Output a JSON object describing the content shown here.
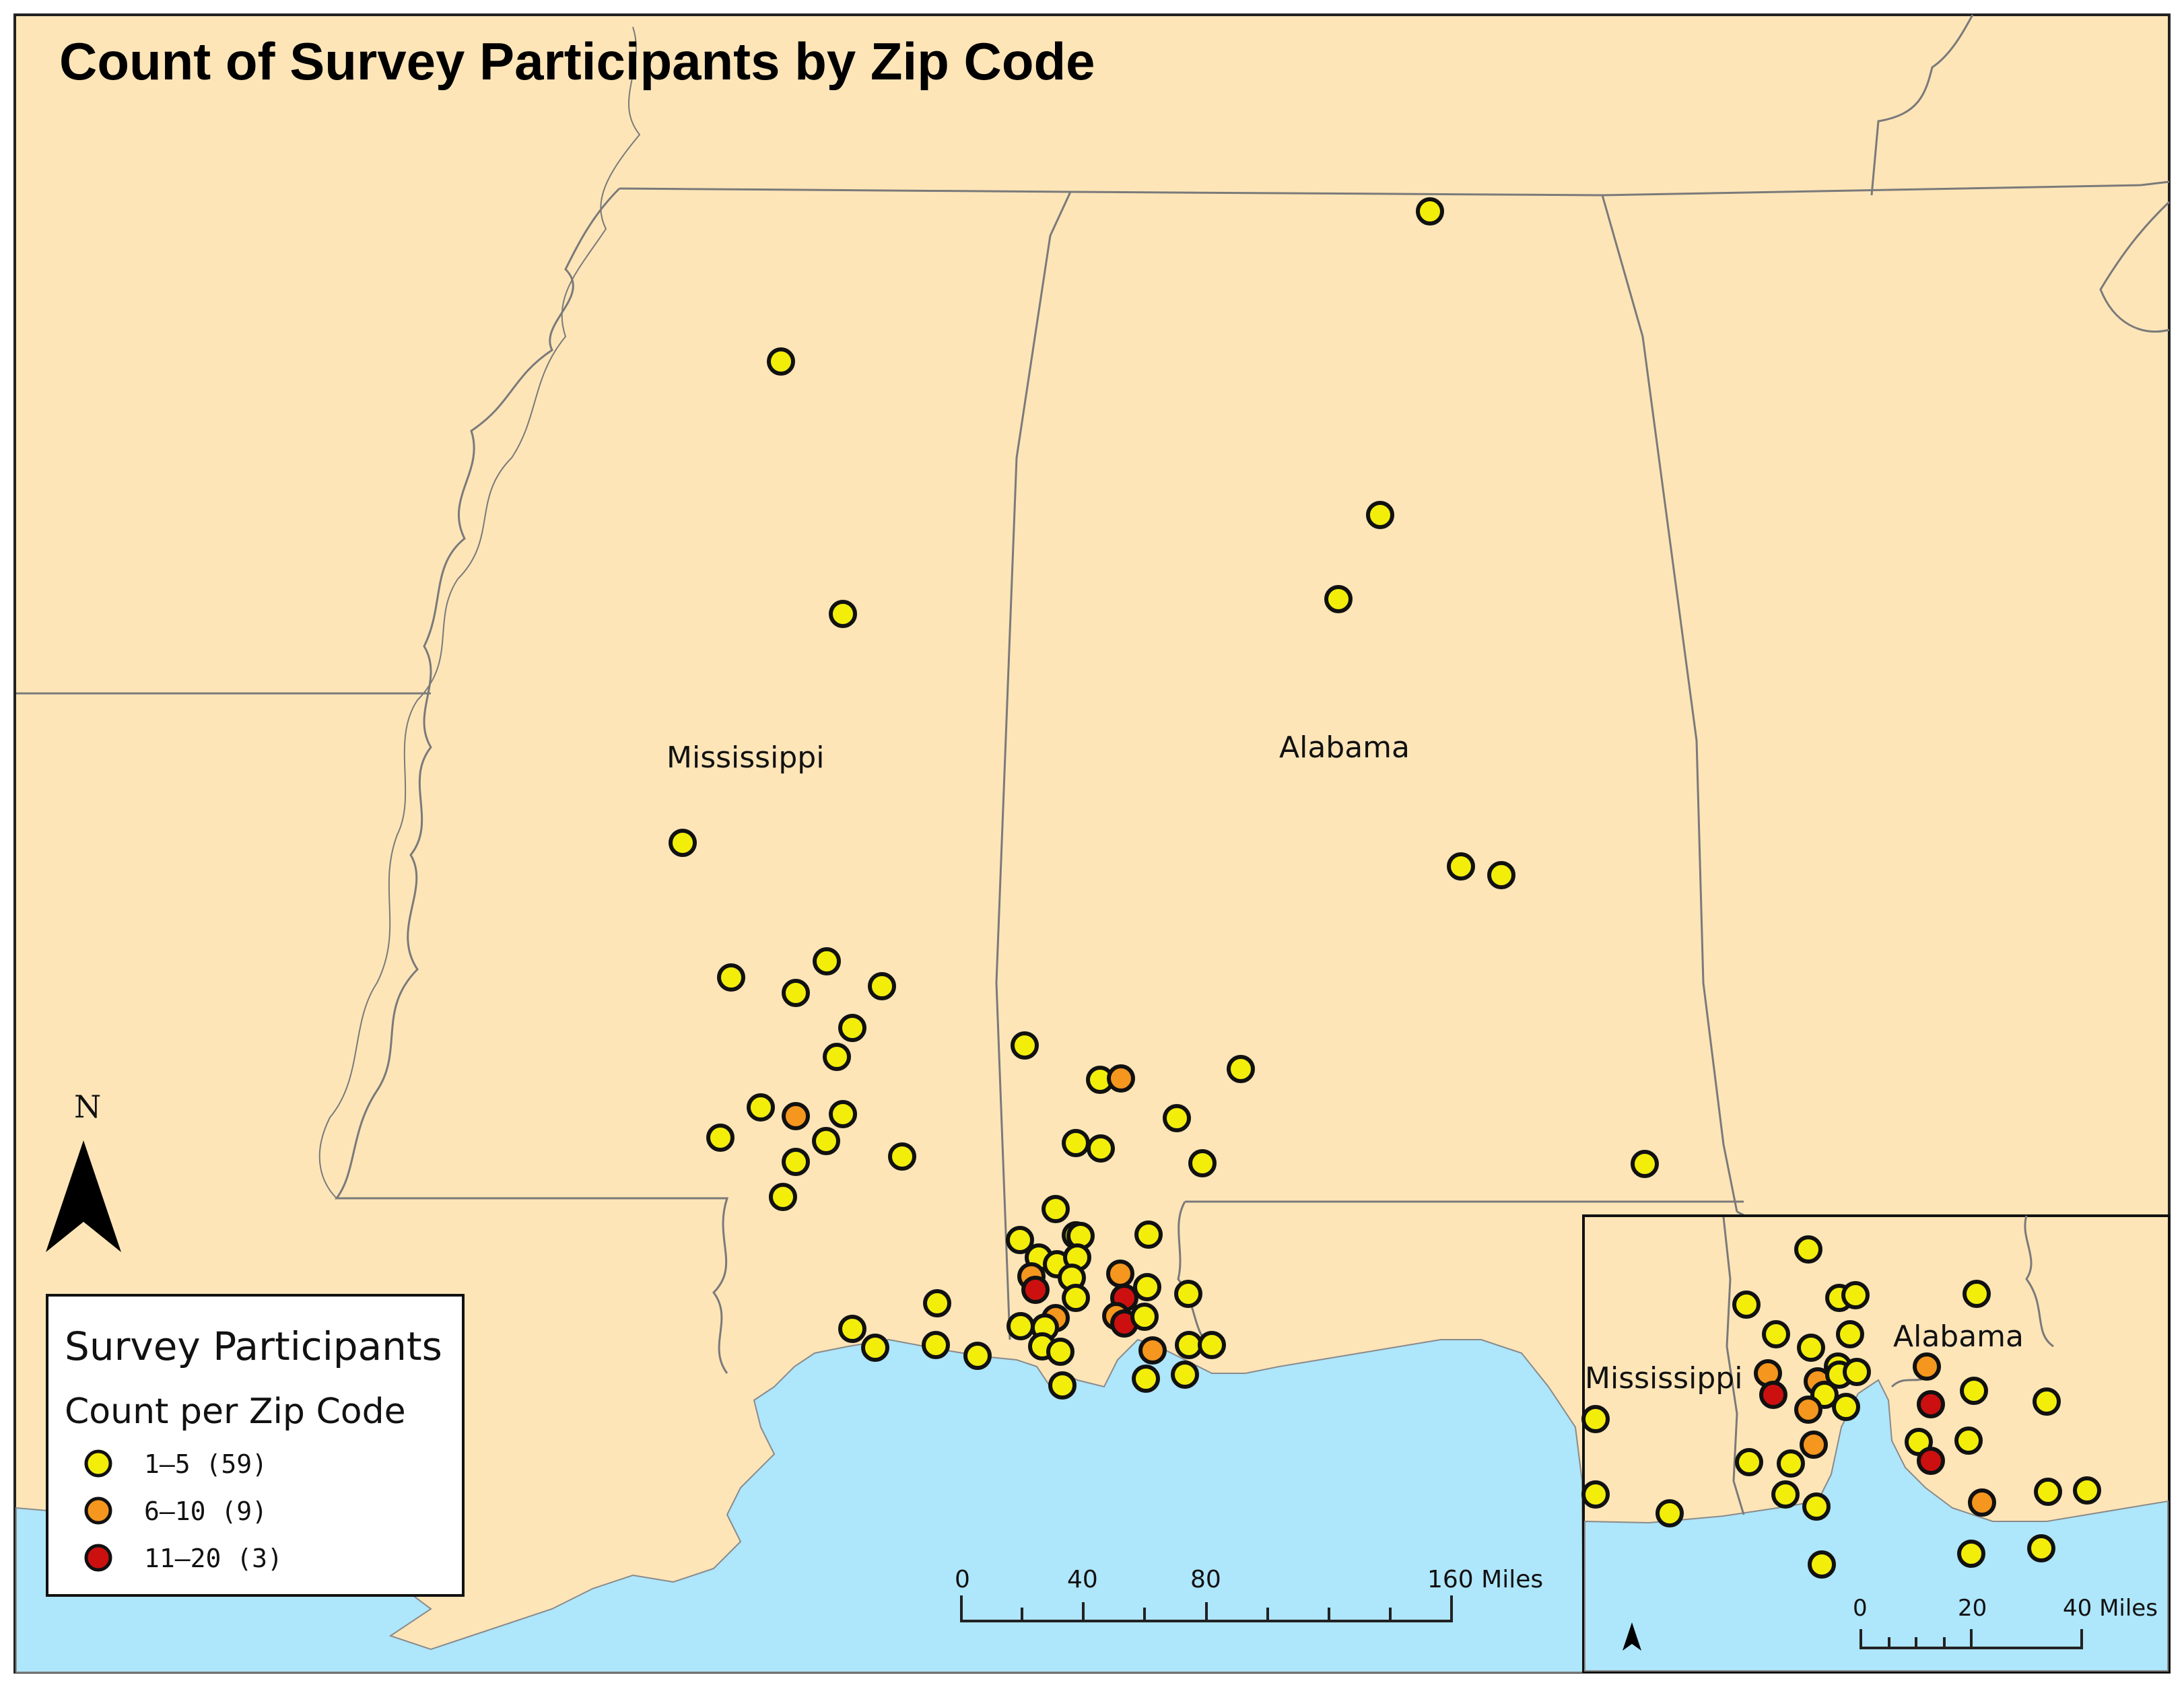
{
  "map": {
    "title": "Count of Survey Participants by Zip Code",
    "state_labels": [
      "Mississippi",
      "Alabama"
    ],
    "north_label": "N",
    "colors": {
      "land": "#fde5b8",
      "water": "#aee6fb",
      "border": "#7a7a7a",
      "class_1": "#f2ee0a",
      "class_2": "#f5961e",
      "class_3": "#cc1010",
      "marker_outline": "#111111"
    }
  },
  "legend": {
    "title": "Survey Participants",
    "subtitle": "Count per Zip Code",
    "items": [
      {
        "label": "1–5 (59)",
        "color": "#f2ee0a"
      },
      {
        "label": "6–10 (9)",
        "color": "#f5961e"
      },
      {
        "label": "11–20 (3)",
        "color": "#cc1010"
      }
    ]
  },
  "scale_bar": {
    "labels": [
      "0",
      "40",
      "80",
      "160 Miles"
    ]
  },
  "inset": {
    "state_labels": [
      "Mississippi",
      "Alabama"
    ],
    "scale_labels": [
      "0",
      "20",
      "40 Miles"
    ]
  }
}
